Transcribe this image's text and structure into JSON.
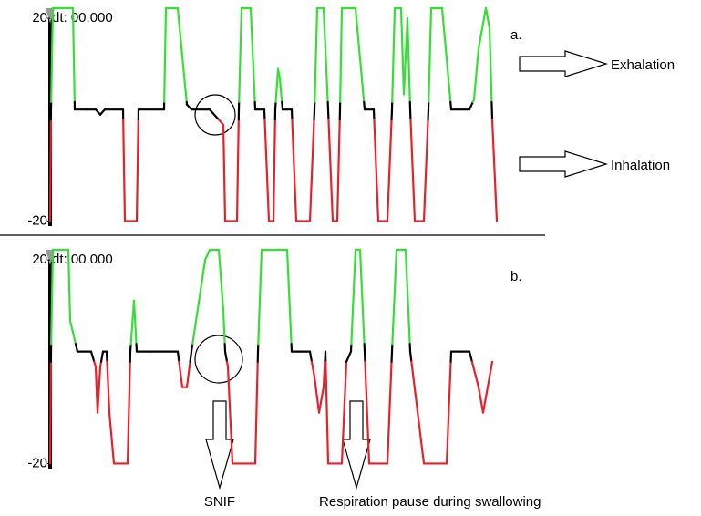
{
  "chart_data": [
    {
      "type": "line",
      "label": "a.",
      "cursor_text": "dt: 00.000",
      "x": [
        0,
        1,
        3,
        25,
        27,
        40,
        50,
        55,
        60,
        80,
        82,
        95,
        97,
        125,
        127,
        140,
        150,
        155,
        175,
        185,
        190,
        192,
        205,
        207,
        210,
        220,
        225,
        235,
        240,
        245,
        247,
        250,
        252,
        255,
        265,
        270,
        285,
        290,
        293,
        300,
        305,
        310,
        315,
        318,
        320,
        335,
        340,
        345,
        355,
        360,
        370,
        375,
        378,
        385,
        388,
        392,
        395,
        400,
        410,
        415,
        418,
        430,
        440,
        460,
        465,
        470,
        478,
        482,
        485,
        490
      ],
      "values": [
        -20,
        2,
        22,
        22,
        2,
        2,
        2,
        1,
        2,
        2,
        -20,
        -20,
        2,
        2,
        22,
        22,
        3,
        2,
        2,
        0,
        -1,
        -20,
        -20,
        2,
        22,
        22,
        2,
        2,
        -20,
        -20,
        2,
        10,
        8,
        2,
        2,
        -20,
        -20,
        2,
        22,
        22,
        2,
        -20,
        -20,
        2,
        22,
        22,
        12,
        2,
        2,
        -20,
        -20,
        2,
        22,
        22,
        5,
        20,
        2,
        -20,
        -20,
        2,
        22,
        22,
        2,
        2,
        4,
        14,
        22,
        18,
        0,
        -20
      ],
      "xlim": [
        0,
        500
      ],
      "ylim": [
        -21,
        22
      ],
      "yticks": [
        20,
        -20
      ],
      "line_colors": {
        "positive": "#33e033",
        "baseline": "#000000",
        "negative": "#e8202a"
      },
      "annotations": [
        "Exhalation",
        "Inhalation"
      ]
    },
    {
      "type": "line",
      "label": "b.",
      "cursor_text": "dt: 00.000",
      "x": [
        0,
        1,
        3,
        20,
        22,
        30,
        45,
        50,
        52,
        55,
        58,
        62,
        65,
        70,
        85,
        88,
        92,
        95,
        110,
        140,
        145,
        150,
        155,
        160,
        170,
        175,
        185,
        190,
        192,
        195,
        200,
        225,
        228,
        232,
        260,
        265,
        275,
        285,
        290,
        295,
        300,
        302,
        305,
        320,
        325,
        330,
        335,
        340,
        345,
        350,
        370,
        375,
        380,
        390,
        395,
        410,
        435,
        440,
        450,
        460,
        470,
        475,
        480,
        485
      ],
      "values": [
        -20,
        2,
        22,
        22,
        8,
        2,
        2,
        -1,
        -10,
        -1,
        2,
        2,
        -10,
        -20,
        -20,
        2,
        12,
        2,
        2,
        2,
        -5,
        -5,
        2,
        8,
        20,
        22,
        22,
        10,
        2,
        -1,
        -20,
        -20,
        2,
        22,
        22,
        2,
        2,
        2,
        -3,
        -10,
        -5,
        2,
        -20,
        -20,
        0,
        2,
        22,
        22,
        2,
        -20,
        -20,
        2,
        22,
        22,
        2,
        -20,
        -20,
        2,
        2,
        2,
        -5,
        -10,
        -5,
        0
      ],
      "xlim": [
        0,
        500
      ],
      "ylim": [
        -21,
        22
      ],
      "yticks": [
        20,
        -20
      ],
      "line_colors": {
        "positive": "#33e033",
        "baseline": "#000000",
        "negative": "#e8202a"
      },
      "annotations": [
        "SNIF",
        "Respiration pause during swallowing"
      ]
    }
  ]
}
